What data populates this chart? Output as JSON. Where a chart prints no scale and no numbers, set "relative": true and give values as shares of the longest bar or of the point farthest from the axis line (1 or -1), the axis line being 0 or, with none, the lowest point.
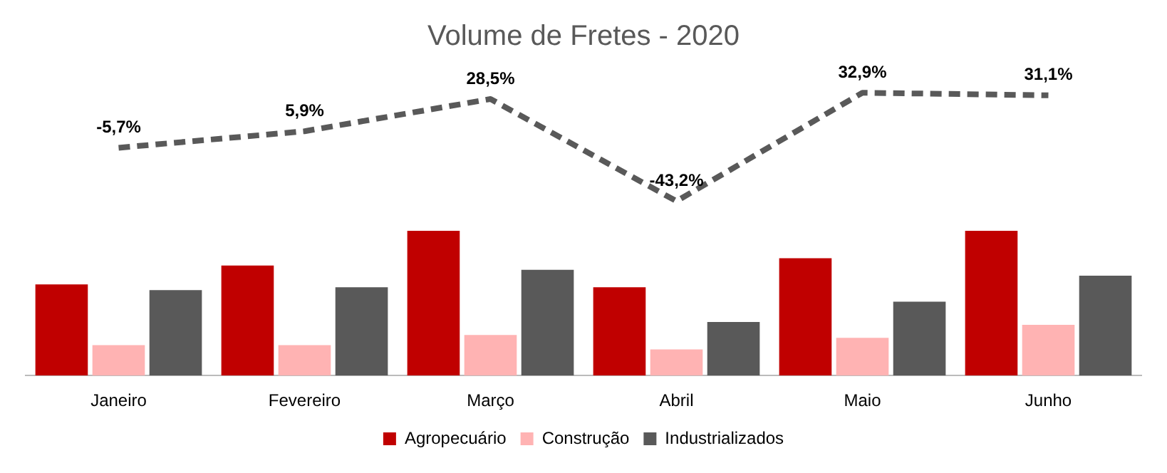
{
  "chart_data": [
    {
      "type": "line",
      "title": "Volume de Fretes - 2020",
      "categories": [
        null,
        null,
        null,
        null,
        null,
        null
      ],
      "series": [
        {
          "color": "#595959",
          "line_style": "dashed",
          "marker": "none",
          "values": [
            -5.7,
            5.9,
            28.5,
            -43.2,
            32.9,
            31.1
          ],
          "value_labels": [
            "-5,7%",
            "5,9%",
            "28,5%",
            "-43,2%",
            "32,9%",
            "31,1%"
          ]
        }
      ]
    },
    {
      "type": "bar",
      "relative": true,
      "legend": "bottom",
      "categories": [
        "Janeiro",
        "Fevereiro",
        "Março",
        "Abril",
        "Maio",
        "Junho"
      ],
      "series": [
        {
          "name": "Agropecuário",
          "color": "#c00000",
          "values": [
            0.63,
            0.76,
            1,
            0.61,
            0.81,
            1
          ]
        },
        {
          "name": "Construção",
          "color": "#ffb3b3",
          "values": [
            0.21,
            0.21,
            0.28,
            0.18,
            0.26,
            0.35
          ]
        },
        {
          "name": "Industrializados",
          "color": "#595959",
          "values": [
            0.59,
            0.61,
            0.73,
            0.37,
            0.51,
            0.69
          ]
        }
      ]
    }
  ]
}
